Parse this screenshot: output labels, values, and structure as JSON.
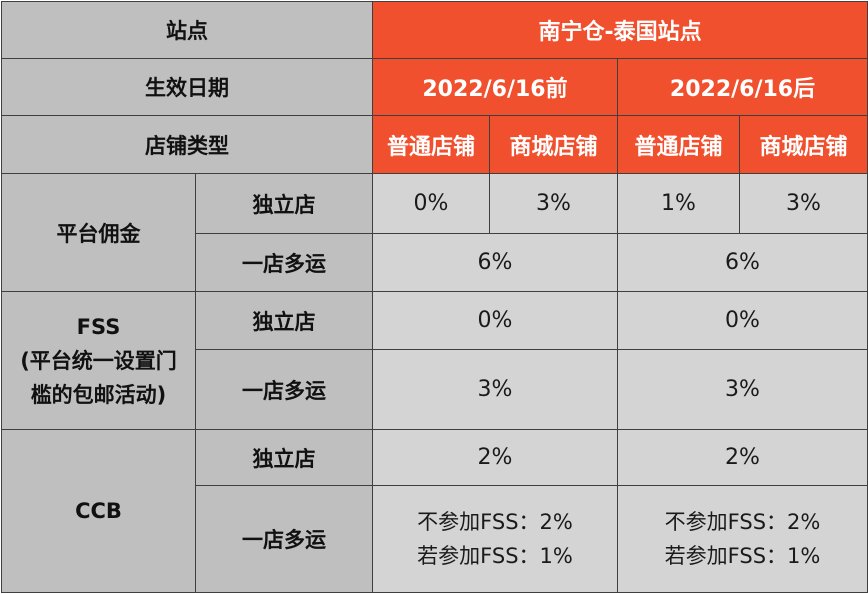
{
  "header": {
    "site_label": "站点",
    "site_value": "南宁仓-泰国站点",
    "date_label": "生效日期",
    "date_before": "2022/6/16前",
    "date_after": "2022/6/16后",
    "shop_type_label": "店铺类型",
    "shop_types": [
      "普通店铺",
      "商城店铺",
      "普通店铺",
      "商城店铺"
    ]
  },
  "commission": {
    "label": "平台佣金",
    "independent_label": "独立店",
    "independent_values": [
      "0%",
      "3%",
      "1%",
      "3%"
    ],
    "multi_label": "一店多运",
    "multi_values": [
      "6%",
      "6%"
    ]
  },
  "fss": {
    "label_lines": [
      "FSS",
      "(平台统一设置门",
      "槛的包邮活动)"
    ],
    "independent_label": "独立店",
    "independent_values": [
      "0%",
      "0%"
    ],
    "multi_label": "一店多运",
    "multi_values": [
      "3%",
      "3%"
    ]
  },
  "ccb": {
    "label": "CCB",
    "independent_label": "独立店",
    "independent_values": [
      "2%",
      "2%"
    ],
    "multi_label": "一店多运",
    "multi_values": [
      [
        "不参加FSS：2%",
        "若参加FSS：1%"
      ],
      [
        "不参加FSS：2%",
        "若参加FSS：1%"
      ]
    ]
  }
}
